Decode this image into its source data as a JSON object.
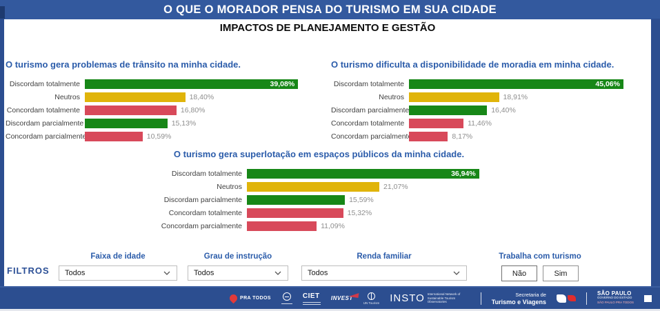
{
  "banner": {
    "title": "O QUE O MORADOR PENSA DO TURISMO EM SUA CIDADE"
  },
  "subtitle": "IMPACTOS DE PLANEJAMENTO E GESTÃO",
  "palette": {
    "green": "#178717",
    "yellow": "#e0b40a",
    "red": "#d8495a",
    "banner_blue": "#33599e",
    "frame_blue": "#2c4e90",
    "title_blue": "#2b5caa"
  },
  "chart_data": [
    {
      "type": "bar",
      "orientation": "horizontal",
      "title": "O turismo gera problemas de trânsito na minha cidade.",
      "categories": [
        "Discordam totalmente",
        "Neutros",
        "Concordam totalmente",
        "Discordam parcialmente",
        "Concordam parcialmente"
      ],
      "values": [
        39.08,
        18.4,
        16.8,
        15.13,
        10.59
      ],
      "labels": [
        "39,08%",
        "18,40%",
        "16,80%",
        "15,13%",
        "10,59%"
      ],
      "colors": [
        "green",
        "yellow",
        "red",
        "green",
        "red"
      ],
      "xlim": [
        0,
        42.6
      ],
      "grid": false,
      "value_label_position": "max-inside-others-outside"
    },
    {
      "type": "bar",
      "orientation": "horizontal",
      "title": "O turismo dificulta a disponibilidade de moradia em minha cidade.",
      "categories": [
        "Discordam totalmente",
        "Neutros",
        "Discordam parcialmente",
        "Concordam totalmente",
        "Concordam parcialmente"
      ],
      "values": [
        45.06,
        18.91,
        16.4,
        11.46,
        8.17
      ],
      "labels": [
        "45,06%",
        "18,91%",
        "16,40%",
        "11,46%",
        "8,17%"
      ],
      "colors": [
        "green",
        "yellow",
        "green",
        "red",
        "red"
      ],
      "xlim": [
        0,
        49.1
      ],
      "grid": false,
      "value_label_position": "max-inside-others-outside"
    },
    {
      "type": "bar",
      "orientation": "horizontal",
      "title": "O turismo gera superlotação em espaços públicos da minha cidade.",
      "categories": [
        "Discordam totalmente",
        "Neutros",
        "Discordam parcialmente",
        "Concordam totalmente",
        "Concordam parcialmente"
      ],
      "values": [
        36.94,
        21.07,
        15.59,
        15.32,
        11.09
      ],
      "labels": [
        "36,94%",
        "21,07%",
        "15,59%",
        "15,32%",
        "11,09%"
      ],
      "colors": [
        "green",
        "yellow",
        "green",
        "red",
        "red"
      ],
      "xlim": [
        0,
        40.3
      ],
      "grid": false,
      "value_label_position": "max-inside-others-outside"
    }
  ],
  "filters": {
    "section_label": "FILTROS",
    "groups": [
      {
        "label": "Faixa de idade",
        "value": "Todos"
      },
      {
        "label": "Grau de instrução",
        "value": "Todos"
      },
      {
        "label": "Renda familiar",
        "value": "Todos"
      }
    ],
    "toggle": {
      "label": "Trabalha com turismo",
      "options": [
        "Não",
        "Sim"
      ]
    }
  },
  "footer": {
    "logos": {
      "pra_todos": "PRA TODOS",
      "ciet": "CIET",
      "invest": "INVEST",
      "un_tourism": "UN Tourism",
      "insto": "INSTO",
      "insto_subtitle": "International Network of Sustainable Tourism Observatories",
      "secretaria_line1": "Secretaria de",
      "secretaria_line2": "Turismo e Viagens",
      "sp_line1": "SÃO PAULO",
      "sp_line2": "GOVERNO DO ESTADO",
      "sp_line3": "SÃO PAULO PRA TODOS"
    }
  }
}
